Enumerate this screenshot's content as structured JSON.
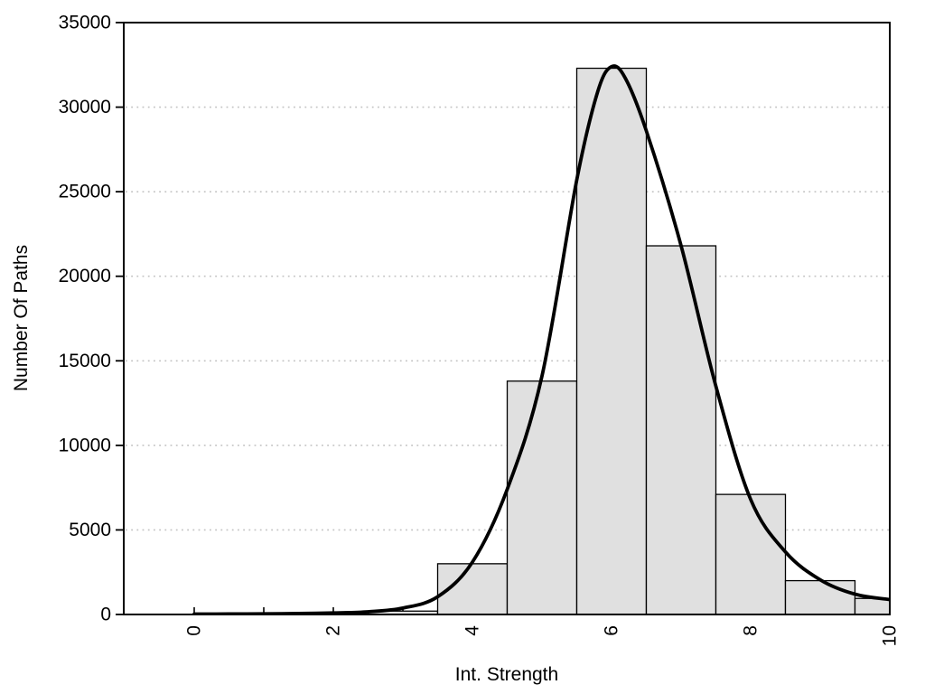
{
  "figure": {
    "background": "#ffffff"
  },
  "chart_data": {
    "type": "bar",
    "subtype": "histogram-with-density-curve",
    "title": "",
    "xlabel": "Int. Strength",
    "ylabel": "Number Of Paths",
    "xlim": [
      -1,
      10
    ],
    "ylim": [
      0,
      35000
    ],
    "x_ticks": [
      0,
      1,
      2,
      3,
      4,
      5,
      6,
      7,
      8,
      9,
      10
    ],
    "x_tick_labels": [
      "0",
      "2",
      "4",
      "6",
      "8",
      "10"
    ],
    "x_labeled_tick_values": [
      0,
      2,
      4,
      6,
      8,
      10
    ],
    "y_ticks": [
      0,
      5000,
      10000,
      15000,
      20000,
      25000,
      30000,
      35000
    ],
    "y_tick_labels": [
      "0",
      "5000",
      "10000",
      "15000",
      "20000",
      "25000",
      "30000",
      "35000"
    ],
    "grid": {
      "horizontal": true,
      "vertical": false,
      "style": "dotted",
      "at": [
        5000,
        10000,
        15000,
        20000,
        25000,
        30000
      ]
    },
    "legend": "none",
    "bars": {
      "bin_width": 1,
      "centers": [
        3,
        4,
        5,
        6,
        7,
        8,
        9,
        10
      ],
      "values": [
        200,
        3000,
        13800,
        32300,
        21800,
        7100,
        2000,
        950
      ]
    },
    "curve": {
      "name": "density-fit",
      "points_x": [
        0,
        0.5,
        1,
        1.5,
        2,
        2.5,
        3,
        3.5,
        4,
        4.5,
        5,
        5.5,
        5.8,
        6,
        6.2,
        6.5,
        7,
        7.5,
        8,
        8.5,
        9,
        9.5,
        10
      ],
      "points_y": [
        25,
        30,
        40,
        58,
        90,
        160,
        380,
        1050,
        3100,
        7400,
        14100,
        25700,
        30900,
        32400,
        31700,
        28600,
        21800,
        13500,
        6800,
        3700,
        2050,
        1200,
        880
      ]
    },
    "colors": {
      "bar_fill": "#e0e0e0",
      "bar_border": "#000000",
      "curve": "#000000",
      "grid": "#c3c3c3",
      "axis": "#000000",
      "text": "#000000"
    }
  }
}
